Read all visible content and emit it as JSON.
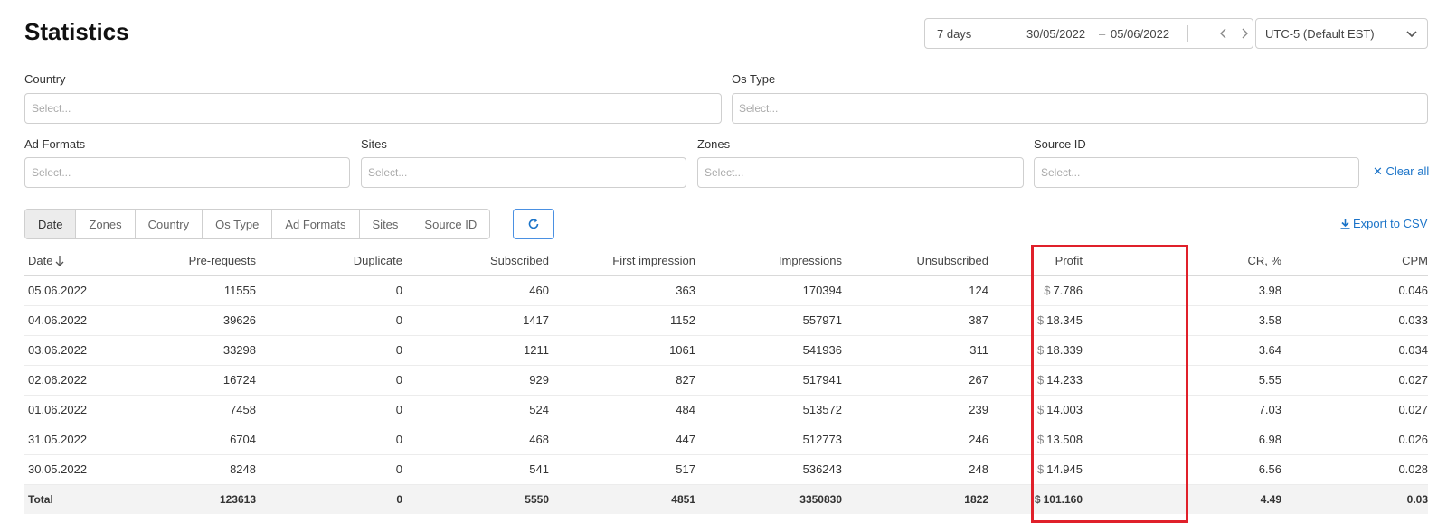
{
  "page": {
    "title": "Statistics"
  },
  "date_range": {
    "preset": "7 days",
    "from": "30/05/2022",
    "dash": "–",
    "to": "05/06/2022"
  },
  "timezone": {
    "value": "UTC-5 (Default EST)"
  },
  "filters": {
    "country": {
      "label": "Country",
      "placeholder": "Select..."
    },
    "os_type": {
      "label": "Os Type",
      "placeholder": "Select..."
    },
    "ad_formats": {
      "label": "Ad Formats",
      "placeholder": "Select..."
    },
    "sites": {
      "label": "Sites",
      "placeholder": "Select..."
    },
    "zones": {
      "label": "Zones",
      "placeholder": "Select..."
    },
    "source_id": {
      "label": "Source ID",
      "placeholder": "Select..."
    },
    "clear_all": "Clear all"
  },
  "group_tabs": [
    "Date",
    "Zones",
    "Country",
    "Os Type",
    "Ad Formats",
    "Sites",
    "Source ID"
  ],
  "active_tab": "Date",
  "export_label": "Export to CSV",
  "table": {
    "columns": [
      "Date",
      "Pre-requests",
      "Duplicate",
      "Subscribed",
      "First impression",
      "Impressions",
      "Unsubscribed",
      "Profit",
      "CR, %",
      "CPM"
    ],
    "currency_symbol": "$",
    "rows": [
      [
        "05.06.2022",
        "11555",
        "0",
        "460",
        "363",
        "170394",
        "124",
        "7.786",
        "3.98",
        "0.046"
      ],
      [
        "04.06.2022",
        "39626",
        "0",
        "1417",
        "1152",
        "557971",
        "387",
        "18.345",
        "3.58",
        "0.033"
      ],
      [
        "03.06.2022",
        "33298",
        "0",
        "1211",
        "1061",
        "541936",
        "311",
        "18.339",
        "3.64",
        "0.034"
      ],
      [
        "02.06.2022",
        "16724",
        "0",
        "929",
        "827",
        "517941",
        "267",
        "14.233",
        "5.55",
        "0.027"
      ],
      [
        "01.06.2022",
        "7458",
        "0",
        "524",
        "484",
        "513572",
        "239",
        "14.003",
        "7.03",
        "0.027"
      ],
      [
        "31.05.2022",
        "6704",
        "0",
        "468",
        "447",
        "512773",
        "246",
        "13.508",
        "6.98",
        "0.026"
      ],
      [
        "30.05.2022",
        "8248",
        "0",
        "541",
        "517",
        "536243",
        "248",
        "14.945",
        "6.56",
        "0.028"
      ]
    ],
    "total": [
      "Total",
      "123613",
      "0",
      "5550",
      "4851",
      "3350830",
      "1822",
      "101.160",
      "4.49",
      "0.03"
    ]
  },
  "colors": {
    "accent": "#1a73c8",
    "highlight": "#e0202a",
    "total_row_bg": "#f3f3f3"
  },
  "icons": {
    "prev": "chevron-left-icon",
    "next": "chevron-right-icon",
    "timezone": "chevron-down-icon",
    "clear": "close-icon",
    "refresh": "refresh-icon",
    "export": "download-icon",
    "sort": "arrow-down-icon"
  }
}
